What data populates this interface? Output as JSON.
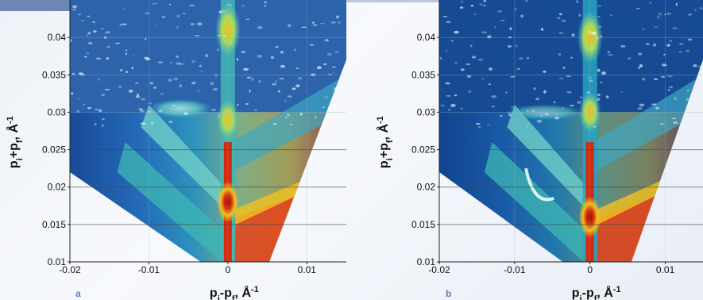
{
  "chart_data": [
    {
      "type": "heatmap",
      "panel_label": "a",
      "xlabel_parts": [
        "p",
        "i",
        "-p",
        "f",
        ", Å",
        "-1"
      ],
      "ylabel_parts": [
        "p",
        "i",
        "+p",
        "f",
        ", Å",
        "-1"
      ],
      "xlim": [
        -0.02,
        0.015
      ],
      "ylim": [
        0.01,
        0.045
      ],
      "x_ticks": [
        -0.02,
        -0.01,
        0,
        0.01
      ],
      "x_tick_labels": [
        "-0.02",
        "-0.01",
        "0",
        "0.01"
      ],
      "y_ticks": [
        0.01,
        0.015,
        0.02,
        0.025,
        0.03,
        0.035,
        0.04
      ],
      "y_tick_labels": [
        "0.01",
        "0.015",
        "0.02",
        "0.025",
        "0.03",
        "0.035",
        "0.04"
      ],
      "grid": true,
      "colormap": "jet",
      "hot_spots_y_at_x0": [
        0.041,
        0.029,
        0.018
      ]
    },
    {
      "type": "heatmap",
      "panel_label": "b",
      "xlabel_parts": [
        "p",
        "i",
        "-p",
        "f",
        ", Å",
        "-1"
      ],
      "ylabel_parts": [
        "p",
        "i",
        "+p",
        "f",
        ", Å",
        "-1"
      ],
      "xlim": [
        -0.02,
        0.015
      ],
      "ylim": [
        0.01,
        0.045
      ],
      "x_ticks": [
        -0.02,
        -0.01,
        0,
        0.01
      ],
      "x_tick_labels": [
        "-0.02",
        "-0.01",
        "0",
        "0.01"
      ],
      "y_ticks": [
        0.01,
        0.015,
        0.02,
        0.025,
        0.03,
        0.035,
        0.04
      ],
      "y_tick_labels": [
        "0.01",
        "0.015",
        "0.02",
        "0.025",
        "0.03",
        "0.035",
        "0.04"
      ],
      "grid": true,
      "colormap": "jet",
      "hot_spots_y_at_x0": [
        0.04,
        0.03,
        0.016
      ]
    }
  ],
  "colors": {
    "header_tab": "#6d86b6",
    "header_line": "#b8c6df",
    "panel_label": "#5d7fb3"
  }
}
